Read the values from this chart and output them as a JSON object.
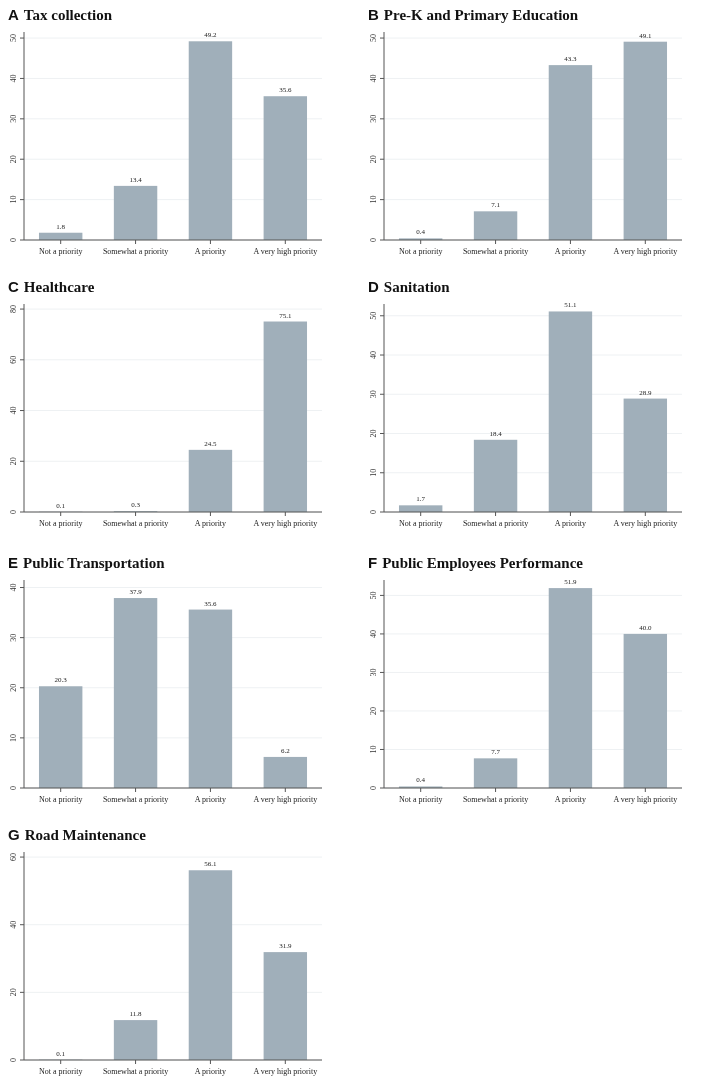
{
  "chart_data": [
    {
      "type": "bar",
      "title": "A Tax collection",
      "categories": [
        "Not a priority",
        "Somewhat a priority",
        "A priority",
        "A very high priority"
      ],
      "values": [
        1.8,
        13.4,
        49.2,
        35.6
      ],
      "value_labels": [
        "1.8",
        "13.4",
        "49.2",
        "35.6"
      ],
      "color": "#a0afba",
      "ylim": [
        0,
        51.5
      ],
      "yticks": [
        0,
        10,
        20,
        30,
        40,
        50
      ],
      "grid": "y"
    },
    {
      "type": "bar",
      "title": "B Pre-K and Primary Education",
      "categories": [
        "Not a priority",
        "Somewhat a priority",
        "A priority",
        "A very high priority"
      ],
      "values": [
        0.4,
        7.1,
        43.3,
        49.1
      ],
      "value_labels": [
        "0.4",
        "7.1",
        "43.3",
        "49.1"
      ],
      "color": "#a0afba",
      "ylim": [
        0,
        51.5
      ],
      "yticks": [
        0,
        10,
        20,
        30,
        40,
        50
      ],
      "grid": "y"
    },
    {
      "type": "bar",
      "title": "C Healthcare",
      "categories": [
        "Not a priority",
        "Somewhat a priority",
        "A priority",
        "A very high priority"
      ],
      "values": [
        0.1,
        0.3,
        24.5,
        75.1
      ],
      "value_labels": [
        "0.1",
        "0.3",
        "24.5",
        "75.1"
      ],
      "color": "#a0afba",
      "ylim": [
        0,
        82
      ],
      "yticks": [
        0,
        20,
        40,
        60,
        80
      ],
      "grid": "y"
    },
    {
      "type": "bar",
      "title": "D Sanitation",
      "categories": [
        "Not a priority",
        "Somewhat a priority",
        "A priority",
        "A very high priority"
      ],
      "values": [
        1.7,
        18.4,
        51.1,
        28.9
      ],
      "value_labels": [
        "1.7",
        "18.4",
        "51.1",
        "28.9"
      ],
      "color": "#a0afba",
      "ylim": [
        0,
        53
      ],
      "yticks": [
        0,
        10,
        20,
        30,
        40,
        50
      ],
      "grid": "y"
    },
    {
      "type": "bar",
      "title": "E Public Transportation",
      "categories": [
        "Not a priority",
        "Somewhat a priority",
        "A priority",
        "A very high priority"
      ],
      "values": [
        20.3,
        37.9,
        35.6,
        6.2
      ],
      "value_labels": [
        "20.3",
        "37.9",
        "35.6",
        "6.2"
      ],
      "color": "#a0afba",
      "ylim": [
        0,
        41.5
      ],
      "yticks": [
        0,
        10,
        20,
        30,
        40
      ],
      "grid": "y"
    },
    {
      "type": "bar",
      "title": "F Public Employees Performance",
      "categories": [
        "Not a priority",
        "Somewhat a priority",
        "A priority",
        "A very high priority"
      ],
      "values": [
        0.4,
        7.7,
        51.9,
        40.0
      ],
      "value_labels": [
        "0.4",
        "7.7",
        "51.9",
        "40.0"
      ],
      "color": "#a0afba",
      "ylim": [
        0,
        54
      ],
      "yticks": [
        0,
        10,
        20,
        30,
        40,
        50
      ],
      "grid": "y"
    },
    {
      "type": "bar",
      "title": "G Road Maintenance",
      "categories": [
        "Not a priority",
        "Somewhat a priority",
        "A priority",
        "A very high priority"
      ],
      "values": [
        0.1,
        11.8,
        56.1,
        31.9
      ],
      "value_labels": [
        "0.1",
        "11.8",
        "56.1",
        "31.9"
      ],
      "color": "#a0afba",
      "ylim": [
        0,
        61.5
      ],
      "yticks": [
        0,
        20,
        40,
        60
      ],
      "grid": "y"
    }
  ]
}
